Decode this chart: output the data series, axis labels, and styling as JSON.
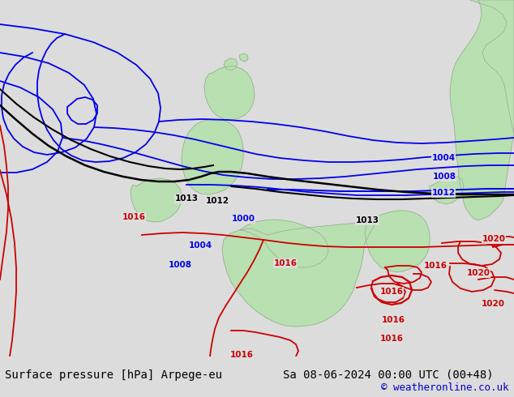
{
  "title_left": "Surface pressure [hPa] Arpege-eu",
  "title_right": "Sa 08-06-2024 00:00 UTC (00+48)",
  "credit": "© weatheronline.co.uk",
  "bg_color": "#dcdcdc",
  "sea_color": "#e0e0e0",
  "land_color": "#b8e0b0",
  "coast_color": "#999999",
  "blue": "#0000ee",
  "black": "#000000",
  "red": "#cc0000",
  "title_fontsize": 10,
  "credit_fontsize": 9,
  "credit_color": "#0000cc",
  "label_fontsize": 7.5,
  "lw": 1.3
}
